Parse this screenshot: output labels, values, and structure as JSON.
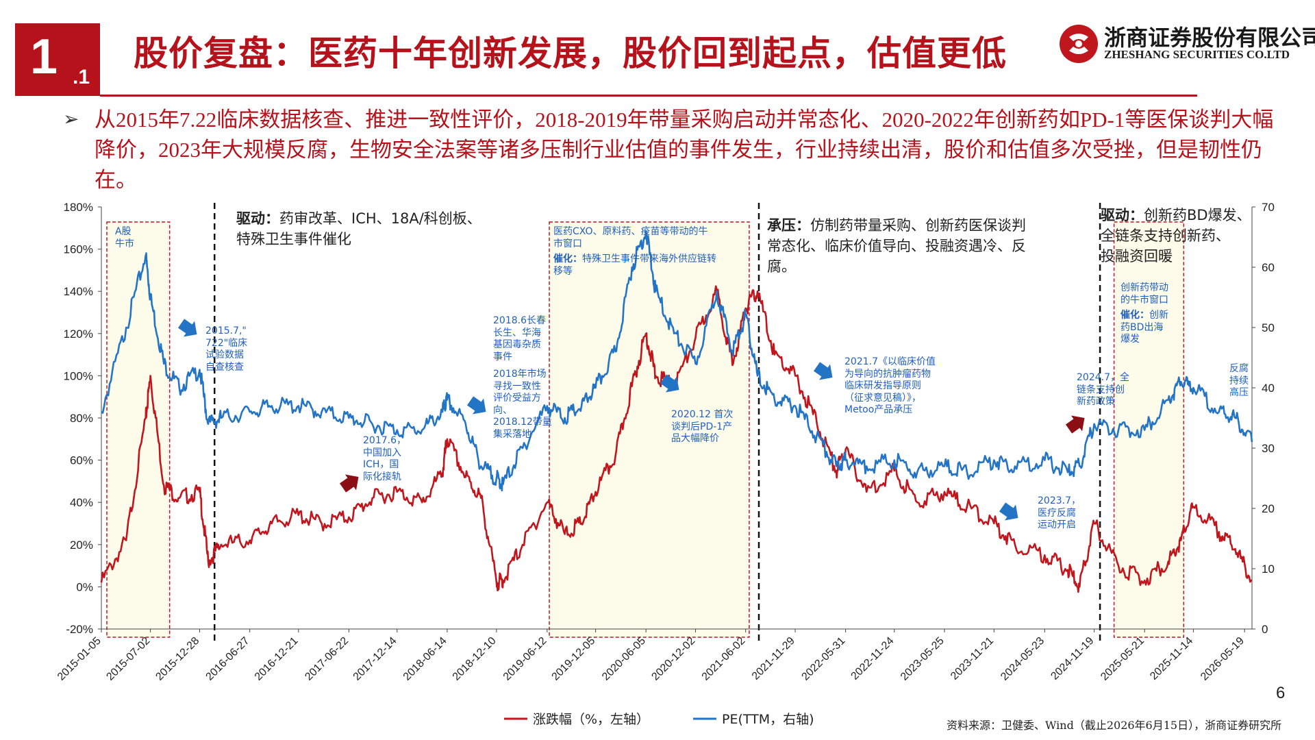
{
  "header": {
    "section_number": "1",
    "section_sub": ".1",
    "title": "股价复盘：医药十年创新发展，股价回到起点，估值更低",
    "company_cn": "浙商证券股份有限公司",
    "company_en": "ZHESHANG SECURITIES CO.LTD"
  },
  "bullet": {
    "text": "从2015年7.22临床数据核查、推进一致性评价，2018-2019年带量采购启动并常态化、2020-2022年创新药如PD-1等医保谈判大幅降价，2023年大规模反腐，生物安全法案等诸多压制行业估值的事件发生，行业持续出清，股价和估值多次受挫，但是韧性仍在。"
  },
  "chart_data": {
    "type": "line",
    "x": [
      "2015-01-05",
      "2015-04-05",
      "2015-06-15",
      "2015-07-02",
      "2015-08-20",
      "2015-10-15",
      "2015-12-28",
      "2016-01-28",
      "2016-03-15",
      "2016-06-27",
      "2016-09-15",
      "2016-12-21",
      "2017-03-15",
      "2017-06-22",
      "2017-09-15",
      "2017-12-14",
      "2018-03-15",
      "2018-05-28",
      "2018-06-14",
      "2018-08-20",
      "2018-10-15",
      "2018-12-10",
      "2019-01-03",
      "2019-03-15",
      "2019-06-12",
      "2019-08-15",
      "2019-10-15",
      "2019-12-05",
      "2020-02-15",
      "2020-04-15",
      "2020-06-05",
      "2020-07-10",
      "2020-09-15",
      "2020-12-02",
      "2021-02-18",
      "2021-04-15",
      "2021-06-02",
      "2021-07-15",
      "2021-09-15",
      "2021-11-29",
      "2022-02-15",
      "2022-04-27",
      "2022-05-31",
      "2022-08-15",
      "2022-11-24",
      "2023-02-15",
      "2023-05-25",
      "2023-08-15",
      "2023-11-21",
      "2024-02-05",
      "2024-05-23",
      "2024-08-15",
      "2024-09-27",
      "2024-11-19",
      "2025-02-15",
      "2025-05-21",
      "2025-08-15",
      "2025-09-30",
      "2025-11-14",
      "2026-02-15",
      "2026-04-15",
      "2026-06-15"
    ],
    "xtick_labels": [
      "2015-01-05",
      "2015-07-02",
      "2015-12-28",
      "2016-06-27",
      "2016-12-21",
      "2017-06-22",
      "2017-12-14",
      "2018-06-14",
      "2018-12-10",
      "2019-06-12",
      "2019-12-05",
      "2020-06-05",
      "2020-12-02",
      "2021-06-02",
      "2021-11-29",
      "2022-05-31",
      "2022-11-24",
      "2023-05-25",
      "2023-11-21",
      "2024-05-23",
      "2024-11-19",
      "2025-05-21",
      "2025-11-14",
      "2026-05-19"
    ],
    "series": [
      {
        "name": "涨跌幅（%，左轴）",
        "axis": "left",
        "color": "#c0161d",
        "values": [
          2,
          22,
          80,
          100,
          48,
          42,
          45,
          12,
          20,
          22,
          30,
          34,
          30,
          33,
          42,
          45,
          40,
          54,
          70,
          52,
          42,
          2,
          3,
          20,
          40,
          25,
          30,
          45,
          62,
          95,
          120,
          100,
          95,
          118,
          140,
          105,
          132,
          140,
          110,
          100,
          78,
          55,
          65,
          45,
          55,
          40,
          45,
          38,
          30,
          20,
          15,
          8,
          0,
          30,
          10,
          3,
          12,
          22,
          38,
          26,
          18,
          3
        ]
      },
      {
        "name": "PE(TTM，右轴)",
        "axis": "right",
        "color": "#2474c6",
        "values": [
          36,
          50,
          62,
          55,
          44,
          40,
          43,
          34,
          35,
          36,
          37,
          37,
          36,
          35,
          34,
          33,
          33,
          36,
          38,
          34,
          27,
          25,
          24,
          30,
          37,
          35,
          37,
          40,
          46,
          60,
          66,
          56,
          49,
          44,
          56,
          46,
          52,
          42,
          38,
          37,
          32,
          27,
          28,
          27,
          28,
          26,
          27,
          26,
          28,
          27,
          28,
          26,
          27,
          34,
          33,
          33,
          38,
          41,
          40,
          36,
          35,
          31
        ]
      }
    ],
    "yleft": {
      "ylim": [
        -20,
        180
      ],
      "tick_labels": [
        "180%",
        "160%",
        "140%",
        "120%",
        "100%",
        "80%",
        "60%",
        "40%",
        "20%",
        "0%",
        "-20%"
      ]
    },
    "yright": {
      "ylim": [
        0,
        70
      ],
      "tick_labels": [
        "70",
        "60",
        "50",
        "40",
        "30",
        "20",
        "10",
        "0"
      ]
    },
    "grid": false,
    "legend": {
      "placement": "bottom-center"
    }
  },
  "annotations": {
    "driver1_title": "驱动：",
    "driver1_text": "药审改革、ICH、18A/科创板、",
    "driver1_text2": "特殊卫生事件催化",
    "pressure_title": "承压：",
    "pressure_text": "仿制药带量采购、创新药医保谈判",
    "pressure_text2": "常态化、临床价值导向、投融资遇冷、反",
    "pressure_text3": "腐。",
    "driver2_title": "驱动：",
    "driver2_text": "创新药BD爆发、",
    "driver2_text2": "全链条支持创新药、",
    "driver2_text3": "投融资回暖",
    "box_a": "A股\n牛市",
    "box_cxo": "医药CXO、原料药、疫苗等带动的牛\n市窗口",
    "box_cxo_catalyst_label": "催化：",
    "box_cxo_catalyst": "特殊卫生事件带来海外供应链转\n移等",
    "box_innov": "创新药带动\n的牛市窗口",
    "box_innov_catalyst_label": "催化：",
    "box_innov_catalyst": "创新\n药BD出海\n爆发",
    "ev_2015": "2015.7,\"\n722\"临床\n试验数据\n自查核查",
    "ev_2017": "2017.6，\n中国加入\nICH，国\n际化接轨",
    "ev_2018a": "2018.6长春\n长生、华海\n基因毒杂质\n事件",
    "ev_2018b": "2018年市场\n寻找一致性\n评价受益方\n向、\n2018.12带量\n集采落地",
    "ev_2020": "2020.12 首次\n谈判后PD-1产\n品大幅降价",
    "ev_2021": "2021.7《以临床价值\n为导向的抗肿瘤药物\n临床研发指导原则\n（征求意见稿）》，\nMetoo产品承压",
    "ev_2023": "2023.7，\n医疗反腐\n运动开启",
    "ev_2024": "2024.7，全\n链条支持创\n新药政策",
    "ev_2026": "反腐\n持续\n高压"
  },
  "footer": {
    "page_number": "6",
    "source": "资料来源：卫健委、Wind（截止2026年6月15日），浙商证券研究所"
  }
}
